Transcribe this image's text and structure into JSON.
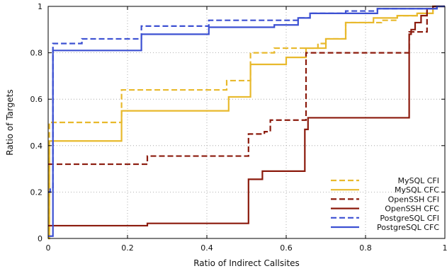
{
  "chart_data": {
    "type": "line",
    "title": "",
    "xlabel": "Ratio of Indirect Callsites",
    "ylabel": "Ratio of Targets",
    "xlim": [
      0,
      1
    ],
    "ylim": [
      0,
      1
    ],
    "x_ticks": [
      0,
      0.2,
      0.4,
      0.6,
      0.8,
      1
    ],
    "x_tick_labels": [
      "0",
      "0.2",
      "0.4",
      "0.6",
      "0.8",
      "1"
    ],
    "y_ticks": [
      0,
      0.2,
      0.4,
      0.6,
      0.8,
      1
    ],
    "y_tick_labels": [
      "0",
      "0.2",
      "0.4",
      "0.6",
      "0.8",
      "1"
    ],
    "grid": true,
    "grid_style": "dotted",
    "legend_placement": "bottom-right",
    "step_style": "post",
    "series": [
      {
        "name": "MySQL CFI",
        "color": "#e8b92c",
        "dash": "dashed",
        "x": [
          0,
          0.003,
          0.185,
          0.45,
          0.51,
          0.57,
          0.65,
          0.68,
          0.7,
          0.75,
          0.84,
          0.88,
          0.93,
          0.97
        ],
        "y": [
          0.0,
          0.5,
          0.64,
          0.68,
          0.8,
          0.82,
          0.82,
          0.84,
          0.86,
          0.93,
          0.94,
          0.96,
          0.97,
          1.0
        ]
      },
      {
        "name": "MySQL CFC",
        "color": "#e8b92c",
        "dash": "solid",
        "x": [
          0,
          0.003,
          0.185,
          0.455,
          0.51,
          0.6,
          0.65,
          0.7,
          0.75,
          0.82,
          0.88,
          0.93,
          0.97
        ],
        "y": [
          0.0,
          0.42,
          0.55,
          0.61,
          0.75,
          0.78,
          0.82,
          0.86,
          0.93,
          0.95,
          0.96,
          0.97,
          1.0
        ]
      },
      {
        "name": "OpenSSH CFI",
        "color": "#8b1a0c",
        "dash": "dashed",
        "x": [
          0,
          0.25,
          0.505,
          0.545,
          0.56,
          0.65,
          0.655,
          0.8,
          0.91,
          0.955,
          0.97
        ],
        "y": [
          0.32,
          0.355,
          0.45,
          0.46,
          0.51,
          0.8,
          0.8,
          0.8,
          0.89,
          0.99,
          1.0
        ]
      },
      {
        "name": "OpenSSH CFC",
        "color": "#8b1a0c",
        "dash": "solid",
        "x": [
          0,
          0.25,
          0.505,
          0.54,
          0.647,
          0.655,
          0.91,
          0.915,
          0.925,
          0.94,
          0.955,
          0.97
        ],
        "y": [
          0.055,
          0.065,
          0.255,
          0.29,
          0.47,
          0.52,
          0.88,
          0.9,
          0.93,
          0.96,
          0.99,
          1.0
        ]
      },
      {
        "name": "PostgreSQL CFI",
        "color": "#3c50d2",
        "dash": "dashed",
        "x": [
          0,
          0.005,
          0.012,
          0.085,
          0.235,
          0.405,
          0.56,
          0.63,
          0.66,
          0.75,
          0.83,
          0.98
        ],
        "y": [
          0.2,
          0.22,
          0.84,
          0.86,
          0.915,
          0.94,
          0.94,
          0.95,
          0.97,
          0.98,
          0.99,
          1.0
        ]
      },
      {
        "name": "PostgreSQL CFC",
        "color": "#3c50d2",
        "dash": "solid",
        "x": [
          0,
          0.012,
          0.235,
          0.405,
          0.57,
          0.63,
          0.66,
          0.83,
          0.98
        ],
        "y": [
          0.01,
          0.81,
          0.88,
          0.91,
          0.92,
          0.95,
          0.97,
          0.99,
          1.0
        ]
      }
    ]
  }
}
